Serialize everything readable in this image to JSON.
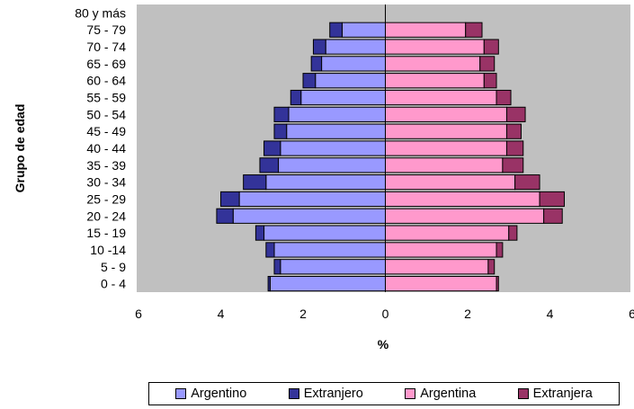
{
  "chart_data": {
    "type": "bar",
    "subtype": "population-pyramid",
    "xlabel": "%",
    "ylabel": "Grupo de edad",
    "xlim": [
      -6,
      6
    ],
    "x_ticks": [
      "6",
      "4",
      "2",
      "0",
      "2",
      "4",
      "6"
    ],
    "grid": false,
    "background": "#c0c0c0",
    "legend_position": "bottom",
    "categories": [
      "80 y más",
      "75 - 79",
      "70 - 74",
      "65 - 69",
      "60 - 64",
      "55 - 59",
      "50 - 54",
      "45 - 49",
      "40 - 44",
      "35 - 39",
      "30 - 34",
      "25 - 29",
      "20 - 24",
      "15 - 19",
      "10 -14",
      "5 - 9",
      "0 - 4"
    ],
    "series": [
      {
        "name": "Argentino",
        "side": "left",
        "color": "#9999ff",
        "values": [
          0,
          1.05,
          1.45,
          1.55,
          1.7,
          2.05,
          2.35,
          2.4,
          2.55,
          2.6,
          2.9,
          3.55,
          3.7,
          2.95,
          2.7,
          2.55,
          2.8
        ]
      },
      {
        "name": "Extranjero",
        "side": "left",
        "color": "#333399",
        "values": [
          0,
          0.3,
          0.3,
          0.25,
          0.3,
          0.25,
          0.35,
          0.3,
          0.4,
          0.45,
          0.55,
          0.45,
          0.4,
          0.2,
          0.2,
          0.15,
          0.05
        ]
      },
      {
        "name": "Argentina",
        "side": "right",
        "color": "#ff99cc",
        "values": [
          0,
          1.95,
          2.4,
          2.3,
          2.4,
          2.7,
          2.95,
          2.95,
          2.95,
          2.85,
          3.15,
          3.75,
          3.85,
          3.0,
          2.7,
          2.5,
          2.7
        ]
      },
      {
        "name": "Extranjera",
        "side": "right",
        "color": "#993366",
        "values": [
          0,
          0.4,
          0.35,
          0.35,
          0.3,
          0.35,
          0.45,
          0.35,
          0.4,
          0.5,
          0.6,
          0.6,
          0.45,
          0.2,
          0.15,
          0.15,
          0.05
        ]
      }
    ]
  }
}
